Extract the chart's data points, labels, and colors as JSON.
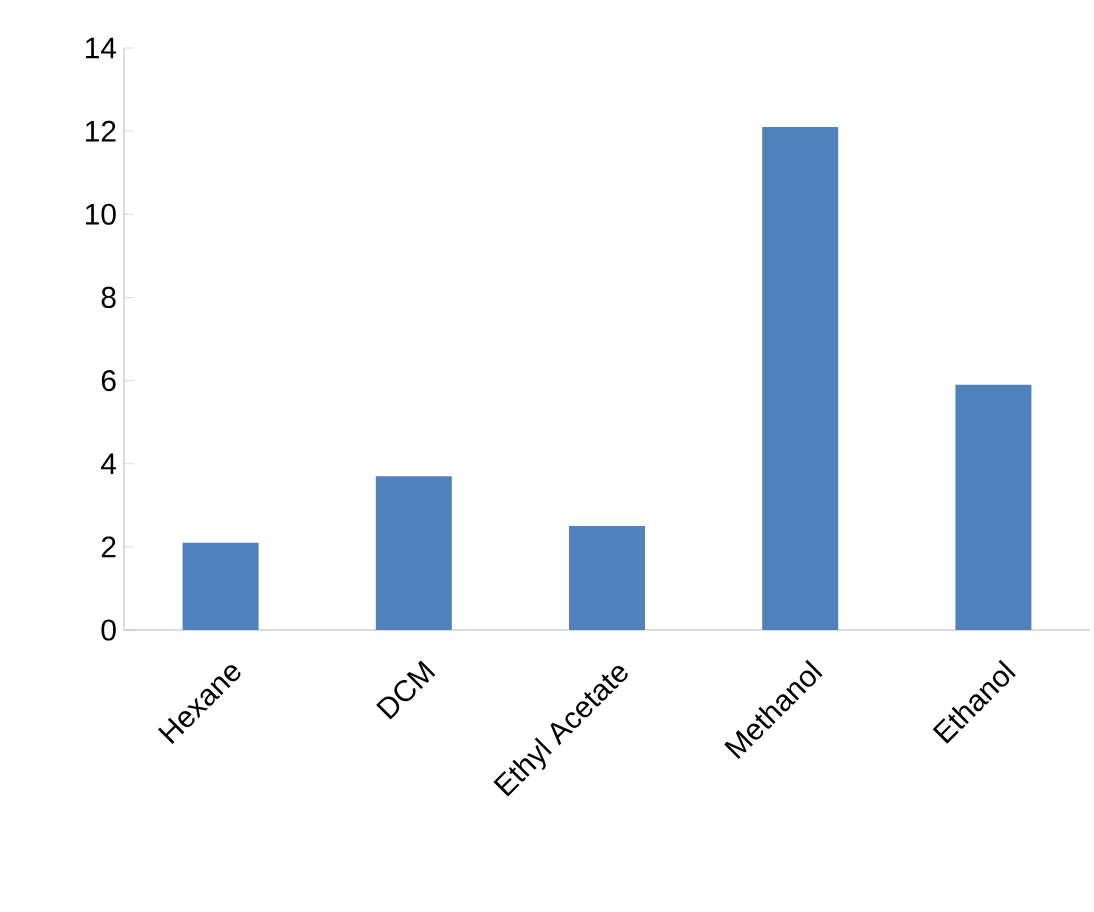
{
  "chart_data": {
    "type": "bar",
    "categories": [
      "Hexane",
      "DCM",
      "Ethyl Acetate",
      "Methanol",
      "Ethanol"
    ],
    "values": [
      2.1,
      3.7,
      2.5,
      12.1,
      5.9
    ],
    "color": "#4f81bd",
    "ylim": [
      0,
      14
    ],
    "yticks": [
      0,
      2,
      4,
      6,
      8,
      10,
      12,
      14
    ]
  }
}
